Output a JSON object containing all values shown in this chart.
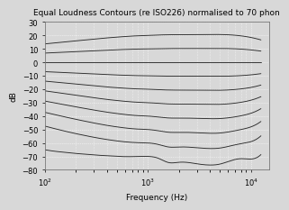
{
  "title": "Equal Loudness Contours (re ISO226) normalised to 70 phon",
  "xlabel": "Frequency (Hz)",
  "ylabel": "dB",
  "xlim": [
    100,
    15000
  ],
  "ylim": [
    -80,
    30
  ],
  "yticks": [
    30,
    20,
    10,
    0,
    -10,
    -20,
    -30,
    -40,
    -50,
    -60,
    -70,
    -80
  ],
  "phon_levels": [
    0,
    10,
    20,
    30,
    40,
    50,
    60,
    70,
    80,
    90
  ],
  "background_color": "#d8d8d8",
  "line_color": "#2a2a2a",
  "grid_color": "#ffffff",
  "title_fontsize": 6.5,
  "label_fontsize": 6.5,
  "tick_fontsize": 6
}
